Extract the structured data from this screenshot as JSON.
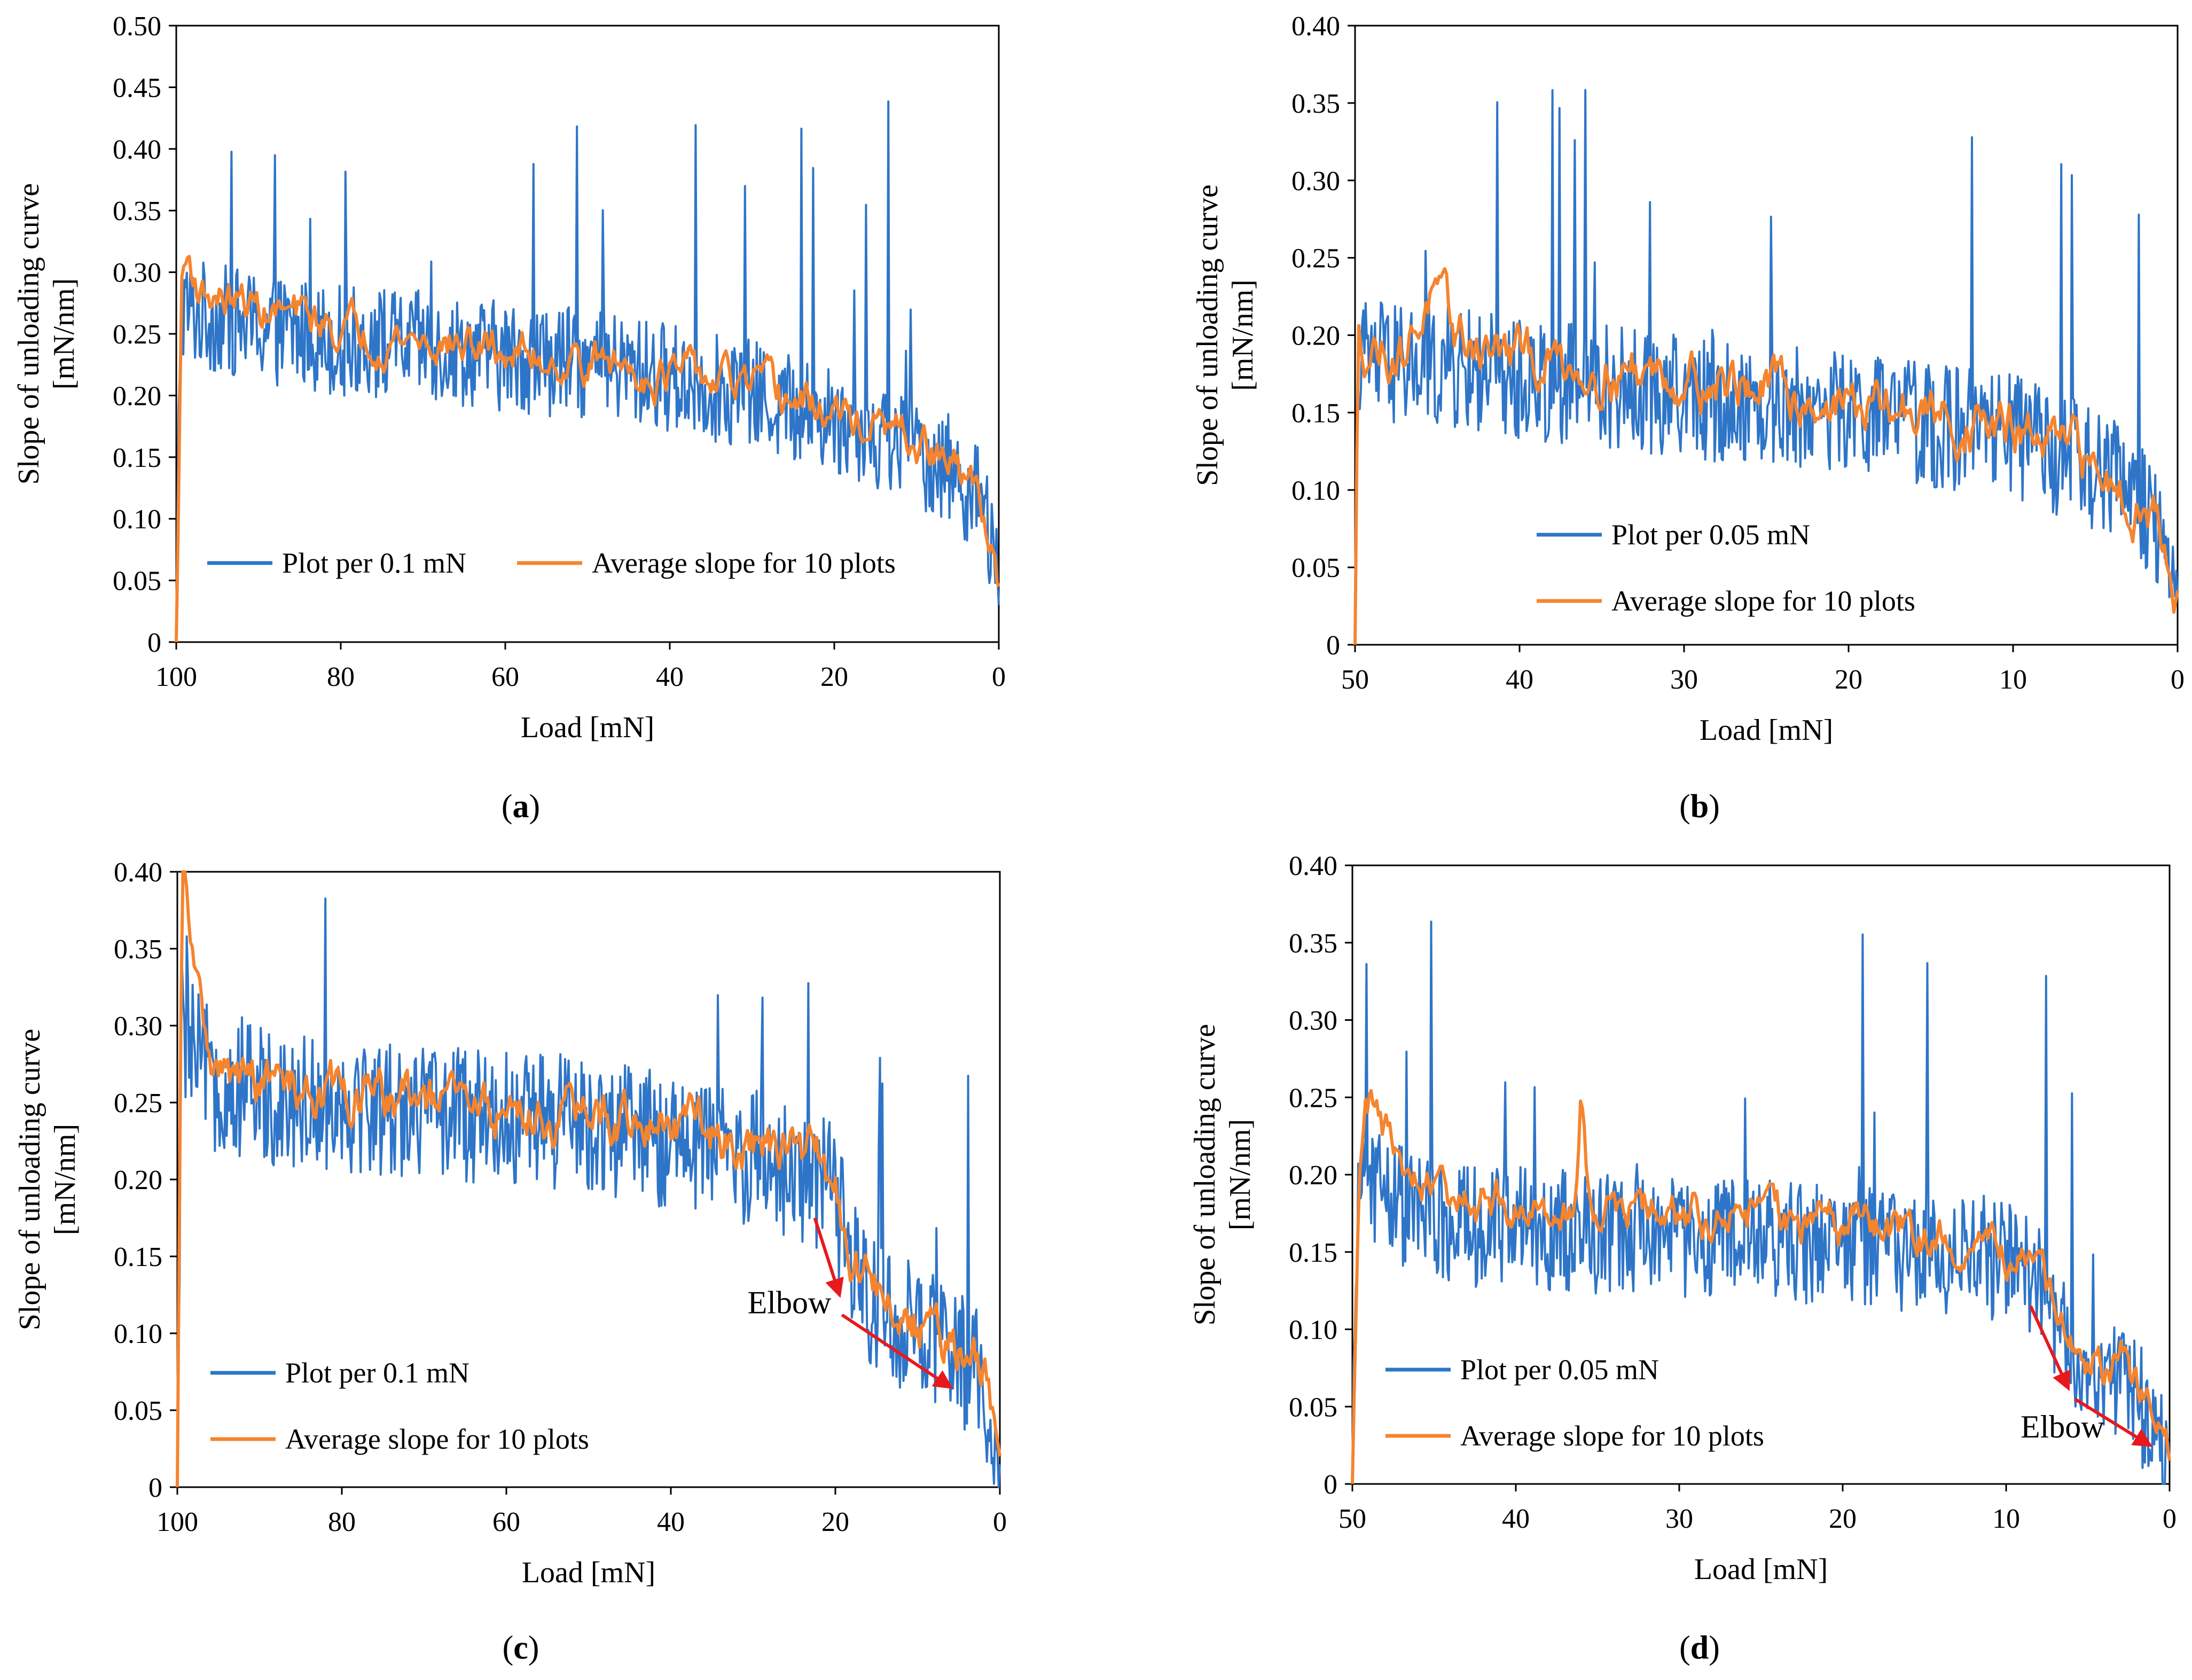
{
  "colors": {
    "blue": "#2E75C8",
    "orange": "#F5842F",
    "arrow": "#E8191D",
    "axis": "#000000"
  },
  "chart_data": [
    {
      "id": "a",
      "type": "line",
      "caption": "a",
      "xlabel": "Load [mN]",
      "ylabel_line1": "Slope of unloading curve",
      "ylabel_line2": "[mN/nm]",
      "xlim": [
        100,
        0
      ],
      "ylim": [
        0,
        0.5
      ],
      "xticks": [
        100,
        80,
        60,
        40,
        20,
        0
      ],
      "yticks": [
        0,
        0.05,
        0.1,
        0.15,
        0.2,
        0.25,
        0.3,
        0.35,
        0.4,
        0.45,
        0.5
      ],
      "ytick_labels": [
        "0",
        "0.05",
        "0.10",
        "0.15",
        "0.20",
        "0.25",
        "0.30",
        "0.35",
        "0.40",
        "0.45",
        "0.50"
      ],
      "legend_layout": "row",
      "legend_position": "bottom-center",
      "series": [
        {
          "name": "Plot per 0.1 mN",
          "color": "#2E75C8",
          "noisy": true,
          "noise": 0.045,
          "spike_prob": 0.03,
          "x": [
            100,
            99.5,
            99,
            97,
            90,
            80,
            70,
            60,
            50,
            40,
            30,
            20,
            12,
            6,
            3,
            1.5,
            0.5,
            0
          ],
          "y": [
            0,
            0.28,
            0.27,
            0.265,
            0.255,
            0.245,
            0.24,
            0.232,
            0.225,
            0.215,
            0.2,
            0.18,
            0.16,
            0.14,
            0.12,
            0.1,
            0.06,
            0.03
          ]
        },
        {
          "name": "Average slope for 10 plots",
          "color": "#F5842F",
          "noisy": true,
          "noise": 0.012,
          "spike_prob": 0,
          "x": [
            100,
            99.3,
            98.5,
            97,
            90,
            80,
            70,
            60,
            50,
            40,
            30,
            20,
            12,
            6,
            3,
            1.5,
            0.5,
            0
          ],
          "y": [
            0,
            0.3,
            0.31,
            0.285,
            0.27,
            0.255,
            0.245,
            0.235,
            0.228,
            0.218,
            0.205,
            0.185,
            0.165,
            0.145,
            0.125,
            0.1,
            0.065,
            0.045
          ]
        }
      ]
    },
    {
      "id": "b",
      "type": "line",
      "caption": "b",
      "xlabel": "Load [mN]",
      "ylabel_line1": "Slope of unloading curve",
      "ylabel_line2": "[mN/nm]",
      "xlim": [
        50,
        0
      ],
      "ylim": [
        0,
        0.4
      ],
      "xticks": [
        50,
        40,
        30,
        20,
        10,
        0
      ],
      "yticks": [
        0,
        0.05,
        0.1,
        0.15,
        0.2,
        0.25,
        0.3,
        0.35,
        0.4
      ],
      "ytick_labels": [
        "0",
        "0.05",
        "0.10",
        "0.15",
        "0.20",
        "0.25",
        "0.30",
        "0.35",
        "0.40"
      ],
      "legend_layout": "column",
      "legend_position": "bottom-center",
      "series": [
        {
          "name": "Plot per 0.05 mN",
          "color": "#2E75C8",
          "noisy": true,
          "noise": 0.04,
          "spike_prob": 0.035,
          "x": [
            50,
            49.8,
            49.5,
            47,
            44,
            40,
            35,
            30,
            25,
            20,
            15,
            10,
            6,
            3,
            1.5,
            0.5,
            0
          ],
          "y": [
            0,
            0.19,
            0.185,
            0.18,
            0.178,
            0.172,
            0.168,
            0.16,
            0.155,
            0.15,
            0.142,
            0.135,
            0.118,
            0.1,
            0.085,
            0.06,
            0.03
          ]
        },
        {
          "name": "Average slope for 10 plots",
          "color": "#F5842F",
          "noisy": true,
          "noise": 0.012,
          "spike_prob": 0,
          "x": [
            50,
            49.8,
            49.5,
            47,
            45.5,
            44,
            40,
            35,
            30,
            25,
            20,
            15,
            10,
            6,
            3,
            1.5,
            0.5,
            0
          ],
          "y": [
            0,
            0.2,
            0.195,
            0.19,
            0.225,
            0.2,
            0.185,
            0.18,
            0.175,
            0.165,
            0.155,
            0.148,
            0.138,
            0.12,
            0.1,
            0.085,
            0.065,
            0.035
          ]
        }
      ]
    },
    {
      "id": "c",
      "type": "line",
      "caption": "c",
      "xlabel": "Load [mN]",
      "ylabel_line1": "Slope of unloading curve",
      "ylabel_line2": "[mN/nm]",
      "xlim": [
        100,
        0
      ],
      "ylim": [
        0,
        0.4
      ],
      "xticks": [
        100,
        80,
        60,
        40,
        20,
        0
      ],
      "yticks": [
        0,
        0.05,
        0.1,
        0.15,
        0.2,
        0.25,
        0.3,
        0.35,
        0.4
      ],
      "ytick_labels": [
        "0",
        "0.05",
        "0.10",
        "0.15",
        "0.20",
        "0.25",
        "0.30",
        "0.35",
        "0.40"
      ],
      "legend_layout": "column",
      "legend_position": "bottom-left",
      "annotation": {
        "text": "Elbow",
        "x": 20.5,
        "y": 0.113,
        "arrow1": [
          [
            22.5,
            0.175
          ],
          [
            19.5,
            0.125
          ]
        ],
        "arrow2": [
          [
            19.2,
            0.112
          ],
          [
            6,
            0.065
          ]
        ]
      },
      "series": [
        {
          "name": "Plot per 0.1 mN",
          "color": "#2E75C8",
          "noisy": true,
          "noise": 0.045,
          "spike_prob": 0.03,
          "x": [
            100,
            99.5,
            98,
            95,
            90,
            80,
            70,
            60,
            50,
            40,
            30,
            22,
            20,
            18,
            15,
            10,
            6,
            3,
            1.5,
            0
          ],
          "y": [
            0,
            0.3,
            0.28,
            0.26,
            0.255,
            0.25,
            0.245,
            0.24,
            0.235,
            0.225,
            0.215,
            0.2,
            0.19,
            0.14,
            0.12,
            0.1,
            0.085,
            0.075,
            0.06,
            0.015
          ]
        },
        {
          "name": "Average slope for 10 plots",
          "color": "#F5842F",
          "noisy": true,
          "noise": 0.012,
          "spike_prob": 0,
          "x": [
            100,
            99.4,
            98.5,
            97,
            95,
            90,
            80,
            70,
            60,
            50,
            40,
            30,
            25,
            22,
            20,
            18,
            15,
            10,
            6,
            3,
            1.5,
            0
          ],
          "y": [
            0,
            0.4,
            0.36,
            0.3,
            0.27,
            0.262,
            0.255,
            0.25,
            0.245,
            0.24,
            0.235,
            0.225,
            0.22,
            0.21,
            0.19,
            0.15,
            0.13,
            0.105,
            0.09,
            0.08,
            0.065,
            0.02
          ]
        }
      ]
    },
    {
      "id": "d",
      "type": "line",
      "caption": "d",
      "xlabel": "Load [mN]",
      "ylabel_line1": "Slope of unloading curve",
      "ylabel_line2": "[mN/nm]",
      "xlim": [
        50,
        0
      ],
      "ylim": [
        0,
        0.4
      ],
      "xticks": [
        50,
        40,
        30,
        20,
        10,
        0
      ],
      "yticks": [
        0,
        0.05,
        0.1,
        0.15,
        0.2,
        0.25,
        0.3,
        0.35,
        0.4
      ],
      "ytick_labels": [
        "0",
        "0.05",
        "0.10",
        "0.15",
        "0.20",
        "0.25",
        "0.30",
        "0.35",
        "0.40"
      ],
      "legend_layout": "column",
      "legend_position": "bottom-left",
      "annotation": {
        "text": "Elbow",
        "x": 4,
        "y": 0.03,
        "arrow1": [
          [
            8.5,
            0.115
          ],
          [
            6.2,
            0.062
          ]
        ],
        "arrow2": [
          [
            5.8,
            0.055
          ],
          [
            1.2,
            0.025
          ]
        ]
      },
      "series": [
        {
          "name": "Plot per 0.05 mN",
          "color": "#2E75C8",
          "noisy": true,
          "noise": 0.04,
          "spike_prob": 0.035,
          "x": [
            50,
            49.6,
            49,
            47,
            45,
            40,
            35,
            30,
            25,
            20,
            15,
            10,
            8,
            6,
            4,
            2,
            1,
            0
          ],
          "y": [
            0,
            0.21,
            0.2,
            0.18,
            0.17,
            0.165,
            0.162,
            0.16,
            0.158,
            0.155,
            0.15,
            0.145,
            0.13,
            0.085,
            0.07,
            0.055,
            0.04,
            0.015
          ]
        },
        {
          "name": "Average slope for 10 plots",
          "color": "#F5842F",
          "noisy": true,
          "noise": 0.01,
          "spike_prob": 0,
          "x": [
            50,
            49.6,
            49.2,
            48.5,
            47,
            45,
            40,
            36.3,
            36,
            35.5,
            30,
            25,
            20,
            15,
            10,
            8,
            6,
            4,
            3,
            2,
            1,
            0
          ],
          "y": [
            0,
            0.2,
            0.27,
            0.24,
            0.2,
            0.185,
            0.18,
            0.18,
            0.25,
            0.18,
            0.175,
            0.172,
            0.168,
            0.16,
            0.15,
            0.13,
            0.09,
            0.075,
            0.09,
            0.06,
            0.045,
            0.015
          ]
        }
      ]
    }
  ]
}
